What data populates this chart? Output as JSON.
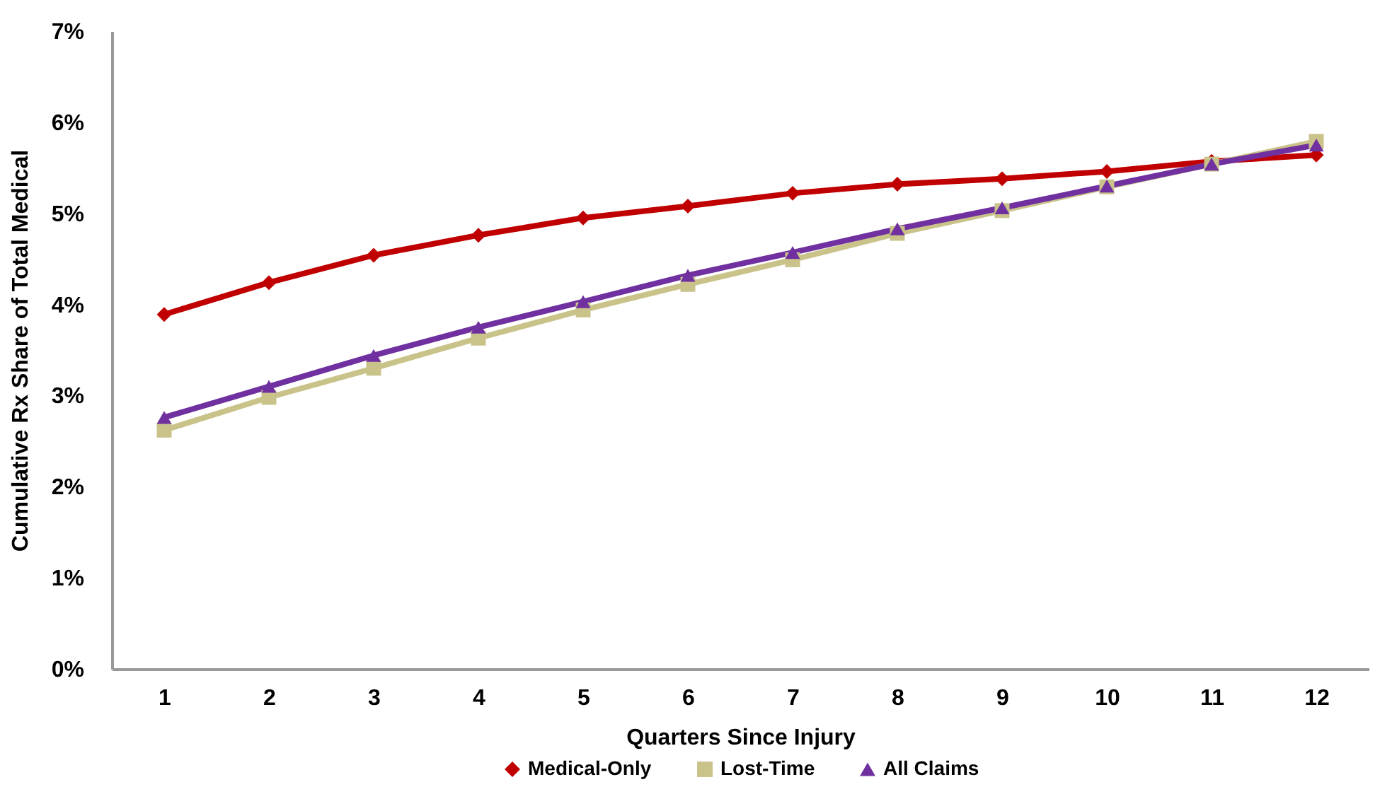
{
  "chart_data": {
    "type": "line",
    "xlabel": "Quarters Since Injury",
    "ylabel": "Cumulative Rx Share of Total Medical",
    "x": [
      1,
      2,
      3,
      4,
      5,
      6,
      7,
      8,
      9,
      10,
      11,
      12
    ],
    "xlim": [
      0.5,
      12.5
    ],
    "xticks": [
      1,
      2,
      3,
      4,
      5,
      6,
      7,
      8,
      9,
      10,
      11,
      12
    ],
    "ylim": [
      0,
      7
    ],
    "yticks": [
      {
        "value": 0,
        "label": "0%"
      },
      {
        "value": 1,
        "label": "1%"
      },
      {
        "value": 2,
        "label": "2%"
      },
      {
        "value": 3,
        "label": "3%"
      },
      {
        "value": 4,
        "label": "4%"
      },
      {
        "value": 5,
        "label": "5%"
      },
      {
        "value": 6,
        "label": "6%"
      },
      {
        "value": 7,
        "label": "7%"
      }
    ],
    "grid": false,
    "legend": "bottom",
    "line_style": "solid",
    "series": [
      {
        "name": "Medical-Only",
        "color": "#c00000",
        "marker": "diamond",
        "values": [
          3.89,
          4.24,
          4.54,
          4.76,
          4.95,
          5.08,
          5.22,
          5.32,
          5.38,
          5.46,
          5.57,
          5.64
        ]
      },
      {
        "name": "Lost-Time",
        "color": "#c9c38a",
        "marker": "square",
        "values": [
          2.62,
          2.98,
          3.3,
          3.63,
          3.94,
          4.22,
          4.49,
          4.78,
          5.03,
          5.29,
          5.54,
          5.79
        ]
      },
      {
        "name": "All Claims",
        "color": "#7030a0",
        "marker": "triangle",
        "values": [
          2.76,
          3.1,
          3.44,
          3.75,
          4.03,
          4.32,
          4.57,
          4.83,
          5.06,
          5.3,
          5.54,
          5.75
        ]
      }
    ]
  }
}
